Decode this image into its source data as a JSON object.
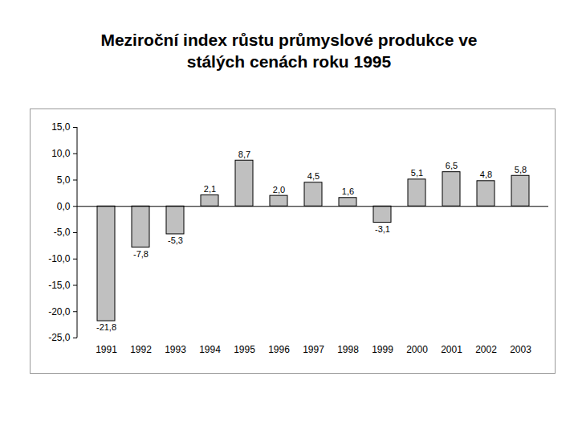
{
  "chart_data": {
    "type": "bar",
    "title": "Meziroční index růstu průmyslové produkce ve\nstálých cenách roku 1995",
    "categories": [
      "1991",
      "1992",
      "1993",
      "1994",
      "1995",
      "1996",
      "1997",
      "1998",
      "1999",
      "2000",
      "2001",
      "2002",
      "2003"
    ],
    "values": [
      -21.8,
      -7.8,
      -5.3,
      2.1,
      8.7,
      2.0,
      4.5,
      1.6,
      -3.1,
      5.1,
      6.5,
      4.8,
      5.8
    ],
    "value_labels": [
      "-21,8",
      "-7,8",
      "-5,3",
      "2,1",
      "8,7",
      "2,0",
      "4,5",
      "1,6",
      "-3,1",
      "5,1",
      "6,5",
      "4,8",
      "5,8"
    ],
    "color": "#c0c0c0",
    "ylim": [
      -25,
      15
    ],
    "yticks": [
      {
        "value": 15,
        "label": "15,0"
      },
      {
        "value": 10,
        "label": "10,0"
      },
      {
        "value": 5,
        "label": "5,0"
      },
      {
        "value": 0,
        "label": "0,0"
      },
      {
        "value": -5,
        "label": "-5,0"
      },
      {
        "value": -10,
        "label": "-10,0"
      },
      {
        "value": -15,
        "label": "-15,0"
      },
      {
        "value": -20,
        "label": "-20,0"
      },
      {
        "value": -25,
        "label": "-25,0"
      }
    ],
    "grid": false,
    "data_labels": true
  }
}
